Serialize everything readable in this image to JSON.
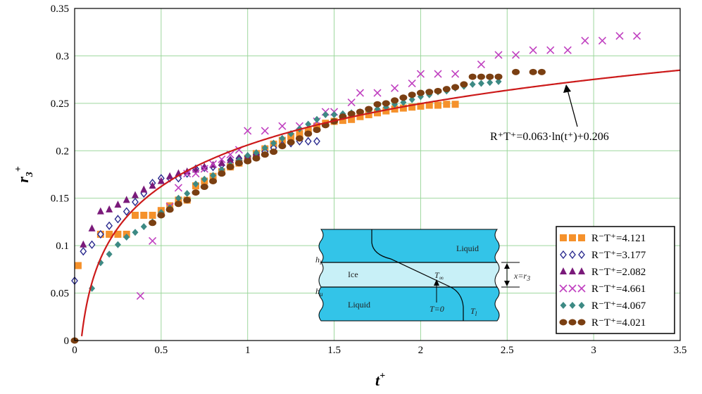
{
  "chart_data": {
    "type": "scatter",
    "xlabel": "t",
    "xlabel_sup": "+",
    "ylabel": "r",
    "ylabel_sub": "3",
    "ylabel_sup": "+",
    "xlim": [
      0,
      3.5
    ],
    "ylim": [
      0,
      0.35
    ],
    "x_ticks": [
      "0",
      "0.5",
      "1",
      "1.5",
      "2",
      "2.5",
      "3",
      "3.5"
    ],
    "y_ticks": [
      "0",
      "0.05",
      "0.1",
      "0.15",
      "0.2",
      "0.25",
      "0.3",
      "0.35"
    ],
    "grid": true,
    "grid_color": "#9dd79d",
    "legend_position": "bottom-right",
    "annotation": "R⁺T⁺=0.063·ln(t⁺)+0.206",
    "fit": {
      "a": 0.063,
      "b": 0.206,
      "color": "#cc1a1a"
    },
    "series": [
      {
        "name": "R⁻T⁺=4.121",
        "marker": "square",
        "color": "#f5912b",
        "points": [
          [
            0.02,
            0.079
          ],
          [
            0.15,
            0.112
          ],
          [
            0.2,
            0.112
          ],
          [
            0.25,
            0.112
          ],
          [
            0.3,
            0.112
          ],
          [
            0.35,
            0.132
          ],
          [
            0.4,
            0.132
          ],
          [
            0.45,
            0.132
          ],
          [
            0.5,
            0.137
          ],
          [
            0.55,
            0.142
          ],
          [
            0.6,
            0.148
          ],
          [
            0.65,
            0.148
          ],
          [
            0.7,
            0.163
          ],
          [
            0.75,
            0.168
          ],
          [
            0.8,
            0.173
          ],
          [
            0.85,
            0.178
          ],
          [
            0.9,
            0.183
          ],
          [
            0.95,
            0.187
          ],
          [
            1.0,
            0.192
          ],
          [
            1.05,
            0.197
          ],
          [
            1.1,
            0.202
          ],
          [
            1.15,
            0.207
          ],
          [
            1.2,
            0.211
          ],
          [
            1.25,
            0.215
          ],
          [
            1.3,
            0.218
          ],
          [
            1.35,
            0.221
          ],
          [
            1.4,
            0.226
          ],
          [
            1.45,
            0.229
          ],
          [
            1.5,
            0.231
          ],
          [
            1.55,
            0.232
          ],
          [
            1.6,
            0.233
          ],
          [
            1.65,
            0.236
          ],
          [
            1.7,
            0.238
          ],
          [
            1.75,
            0.24
          ],
          [
            1.8,
            0.242
          ],
          [
            1.85,
            0.244
          ],
          [
            1.9,
            0.245
          ],
          [
            1.95,
            0.246
          ],
          [
            2.0,
            0.247
          ],
          [
            2.05,
            0.248
          ],
          [
            2.1,
            0.248
          ],
          [
            2.15,
            0.249
          ],
          [
            2.2,
            0.249
          ]
        ]
      },
      {
        "name": "R⁻T⁺=3.177",
        "marker": "diamond-open",
        "color": "#2b2b8f",
        "points": [
          [
            0.0,
            0.063
          ],
          [
            0.05,
            0.094
          ],
          [
            0.1,
            0.101
          ],
          [
            0.15,
            0.112
          ],
          [
            0.2,
            0.121
          ],
          [
            0.25,
            0.128
          ],
          [
            0.3,
            0.136
          ],
          [
            0.35,
            0.146
          ],
          [
            0.4,
            0.155
          ],
          [
            0.45,
            0.166
          ],
          [
            0.5,
            0.171
          ],
          [
            0.55,
            0.171
          ],
          [
            0.6,
            0.171
          ],
          [
            0.65,
            0.176
          ],
          [
            0.7,
            0.181
          ],
          [
            0.75,
            0.182
          ],
          [
            0.8,
            0.183
          ],
          [
            0.85,
            0.185
          ],
          [
            0.9,
            0.19
          ],
          [
            0.95,
            0.192
          ],
          [
            1.0,
            0.194
          ],
          [
            1.05,
            0.196
          ],
          [
            1.1,
            0.199
          ],
          [
            1.15,
            0.203
          ],
          [
            1.2,
            0.206
          ],
          [
            1.25,
            0.208
          ],
          [
            1.3,
            0.21
          ],
          [
            1.35,
            0.21
          ],
          [
            1.4,
            0.21
          ]
        ]
      },
      {
        "name": "R⁻T⁺=2.082",
        "marker": "triangle",
        "color": "#7a1a7a",
        "points": [
          [
            0.05,
            0.101
          ],
          [
            0.1,
            0.118
          ],
          [
            0.15,
            0.136
          ],
          [
            0.2,
            0.138
          ],
          [
            0.25,
            0.143
          ],
          [
            0.3,
            0.148
          ],
          [
            0.35,
            0.153
          ],
          [
            0.4,
            0.159
          ],
          [
            0.45,
            0.163
          ],
          [
            0.5,
            0.168
          ],
          [
            0.55,
            0.173
          ],
          [
            0.6,
            0.176
          ],
          [
            0.65,
            0.178
          ],
          [
            0.7,
            0.18
          ],
          [
            0.75,
            0.183
          ],
          [
            0.8,
            0.185
          ],
          [
            0.85,
            0.187
          ],
          [
            0.9,
            0.19
          ],
          [
            0.95,
            0.192
          ],
          [
            1.0,
            0.194
          ],
          [
            1.05,
            0.197
          ]
        ]
      },
      {
        "name": "R⁻T⁺=4.661",
        "marker": "x",
        "color": "#c040c0",
        "points": [
          [
            0.38,
            0.047
          ],
          [
            0.45,
            0.105
          ],
          [
            0.55,
            0.141
          ],
          [
            0.6,
            0.161
          ],
          [
            0.65,
            0.176
          ],
          [
            0.7,
            0.176
          ],
          [
            0.75,
            0.181
          ],
          [
            0.8,
            0.186
          ],
          [
            0.85,
            0.191
          ],
          [
            0.9,
            0.196
          ],
          [
            0.95,
            0.201
          ],
          [
            1.0,
            0.221
          ],
          [
            1.1,
            0.221
          ],
          [
            1.2,
            0.226
          ],
          [
            1.3,
            0.226
          ],
          [
            1.4,
            0.231
          ],
          [
            1.45,
            0.241
          ],
          [
            1.5,
            0.241
          ],
          [
            1.6,
            0.251
          ],
          [
            1.65,
            0.261
          ],
          [
            1.75,
            0.261
          ],
          [
            1.85,
            0.266
          ],
          [
            1.95,
            0.271
          ],
          [
            2.0,
            0.281
          ],
          [
            2.1,
            0.281
          ],
          [
            2.2,
            0.281
          ],
          [
            2.35,
            0.291
          ],
          [
            2.45,
            0.301
          ],
          [
            2.55,
            0.301
          ],
          [
            2.65,
            0.306
          ],
          [
            2.75,
            0.306
          ],
          [
            2.85,
            0.306
          ],
          [
            2.95,
            0.316
          ],
          [
            3.05,
            0.316
          ],
          [
            3.15,
            0.321
          ],
          [
            3.25,
            0.321
          ]
        ]
      },
      {
        "name": "R⁻T⁺=4.067",
        "marker": "diamond",
        "color": "#3d8a84",
        "points": [
          [
            0.1,
            0.055
          ],
          [
            0.15,
            0.082
          ],
          [
            0.2,
            0.091
          ],
          [
            0.25,
            0.101
          ],
          [
            0.3,
            0.109
          ],
          [
            0.35,
            0.114
          ],
          [
            0.4,
            0.12
          ],
          [
            0.45,
            0.125
          ],
          [
            0.5,
            0.135
          ],
          [
            0.55,
            0.14
          ],
          [
            0.6,
            0.15
          ],
          [
            0.65,
            0.155
          ],
          [
            0.7,
            0.165
          ],
          [
            0.75,
            0.17
          ],
          [
            0.8,
            0.174
          ],
          [
            0.85,
            0.18
          ],
          [
            0.9,
            0.185
          ],
          [
            0.95,
            0.19
          ],
          [
            1.0,
            0.195
          ],
          [
            1.05,
            0.198
          ],
          [
            1.1,
            0.203
          ],
          [
            1.15,
            0.208
          ],
          [
            1.2,
            0.213
          ],
          [
            1.25,
            0.218
          ],
          [
            1.3,
            0.223
          ],
          [
            1.35,
            0.228
          ],
          [
            1.4,
            0.233
          ],
          [
            1.45,
            0.238
          ],
          [
            1.5,
            0.238
          ],
          [
            1.55,
            0.239
          ],
          [
            1.6,
            0.24
          ],
          [
            1.65,
            0.241
          ],
          [
            1.7,
            0.242
          ],
          [
            1.75,
            0.244
          ],
          [
            1.8,
            0.246
          ],
          [
            1.85,
            0.249
          ],
          [
            1.9,
            0.251
          ],
          [
            1.95,
            0.254
          ],
          [
            2.0,
            0.257
          ],
          [
            2.05,
            0.259
          ],
          [
            2.1,
            0.262
          ],
          [
            2.15,
            0.263
          ],
          [
            2.2,
            0.266
          ],
          [
            2.25,
            0.268
          ],
          [
            2.3,
            0.27
          ],
          [
            2.35,
            0.271
          ],
          [
            2.4,
            0.272
          ],
          [
            2.45,
            0.273
          ]
        ]
      },
      {
        "name": "R⁻T⁺=4.021",
        "marker": "circle",
        "color": "#7a3f12",
        "points": [
          [
            0.0,
            0.0
          ],
          [
            0.45,
            0.124
          ],
          [
            0.5,
            0.132
          ],
          [
            0.55,
            0.138
          ],
          [
            0.6,
            0.144
          ],
          [
            0.65,
            0.148
          ],
          [
            0.7,
            0.156
          ],
          [
            0.75,
            0.162
          ],
          [
            0.8,
            0.168
          ],
          [
            0.85,
            0.176
          ],
          [
            0.9,
            0.183
          ],
          [
            0.95,
            0.187
          ],
          [
            1.0,
            0.189
          ],
          [
            1.05,
            0.192
          ],
          [
            1.1,
            0.196
          ],
          [
            1.15,
            0.199
          ],
          [
            1.2,
            0.205
          ],
          [
            1.25,
            0.209
          ],
          [
            1.3,
            0.213
          ],
          [
            1.35,
            0.218
          ],
          [
            1.4,
            0.222
          ],
          [
            1.45,
            0.227
          ],
          [
            1.5,
            0.231
          ],
          [
            1.55,
            0.236
          ],
          [
            1.6,
            0.239
          ],
          [
            1.65,
            0.241
          ],
          [
            1.7,
            0.244
          ],
          [
            1.75,
            0.249
          ],
          [
            1.8,
            0.25
          ],
          [
            1.85,
            0.253
          ],
          [
            1.9,
            0.256
          ],
          [
            1.95,
            0.259
          ],
          [
            2.0,
            0.261
          ],
          [
            2.05,
            0.262
          ],
          [
            2.1,
            0.263
          ],
          [
            2.15,
            0.265
          ],
          [
            2.2,
            0.267
          ],
          [
            2.25,
            0.27
          ],
          [
            2.3,
            0.278
          ],
          [
            2.35,
            0.278
          ],
          [
            2.4,
            0.278
          ],
          [
            2.45,
            0.278
          ],
          [
            2.55,
            0.283
          ],
          [
            2.65,
            0.283
          ],
          [
            2.7,
            0.283
          ]
        ]
      }
    ],
    "inset": {
      "labels": {
        "liquid_top": "Liquid",
        "ice": "Ice",
        "liquid_bottom": "Liquid",
        "t_inf": "T",
        "t_inf_sub": "∞",
        "t_zero": "T=0",
        "t_l": "T",
        "t_l_sub": "l",
        "h_top": "h",
        "h_top_sub": "i",
        "h_bottom": "h",
        "h_bottom_sub": "u",
        "x_label": "x=r",
        "x_label_sub": "3"
      },
      "liquid_color": "#33c4e8",
      "ice_color": "#c8f0f7"
    }
  }
}
